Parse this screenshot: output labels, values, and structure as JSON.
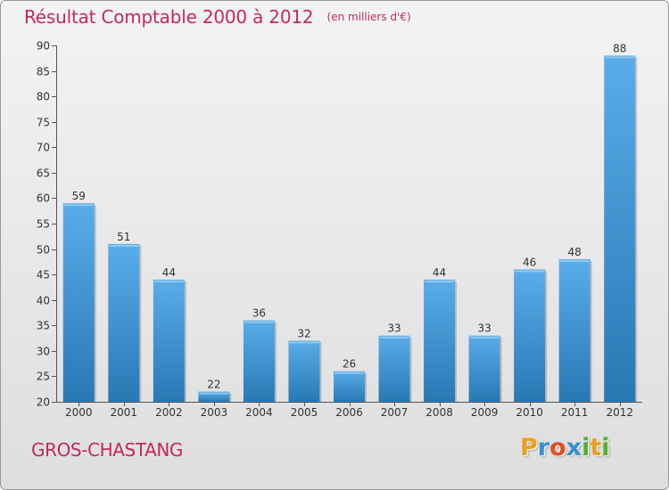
{
  "header": {
    "title": "Résultat Comptable 2000 à 2012",
    "subtitle": "(en milliers d'€)"
  },
  "footer": {
    "commune": "GROS-CHASTANG",
    "logo_letters": [
      "P",
      "r",
      "o",
      "x",
      "i",
      "t",
      "i"
    ]
  },
  "colors": {
    "title": "#c4285f",
    "bar_light": "#5aade8",
    "bar_dark": "#2878b4",
    "logo": [
      "#e8a020",
      "#3a8fd0",
      "#e05020",
      "#3a8fd0",
      "#50b030",
      "#e8a020",
      "#50b030"
    ]
  },
  "chart_data": {
    "type": "bar",
    "title": "Résultat Comptable 2000 à 2012",
    "subtitle": "(en milliers d'€)",
    "categories": [
      "2000",
      "2001",
      "2002",
      "2003",
      "2004",
      "2005",
      "2006",
      "2007",
      "2008",
      "2009",
      "2010",
      "2011",
      "2012"
    ],
    "values": [
      59,
      51,
      44,
      22,
      36,
      32,
      26,
      33,
      44,
      33,
      46,
      48,
      88
    ],
    "value_labels": [
      "59",
      "51",
      "44",
      "22",
      "36",
      "32",
      "26",
      "33",
      "44",
      "33",
      "46",
      "48",
      "88"
    ],
    "ylim": [
      20,
      90
    ],
    "yticks": [
      20,
      25,
      30,
      35,
      40,
      45,
      50,
      55,
      60,
      65,
      70,
      75,
      80,
      85,
      90
    ],
    "ytick_labels": [
      "20",
      "25",
      "30",
      "35",
      "40",
      "45",
      "50",
      "55",
      "60",
      "65",
      "70",
      "75",
      "80",
      "85",
      "90"
    ],
    "grid": false,
    "data_labels": true
  }
}
